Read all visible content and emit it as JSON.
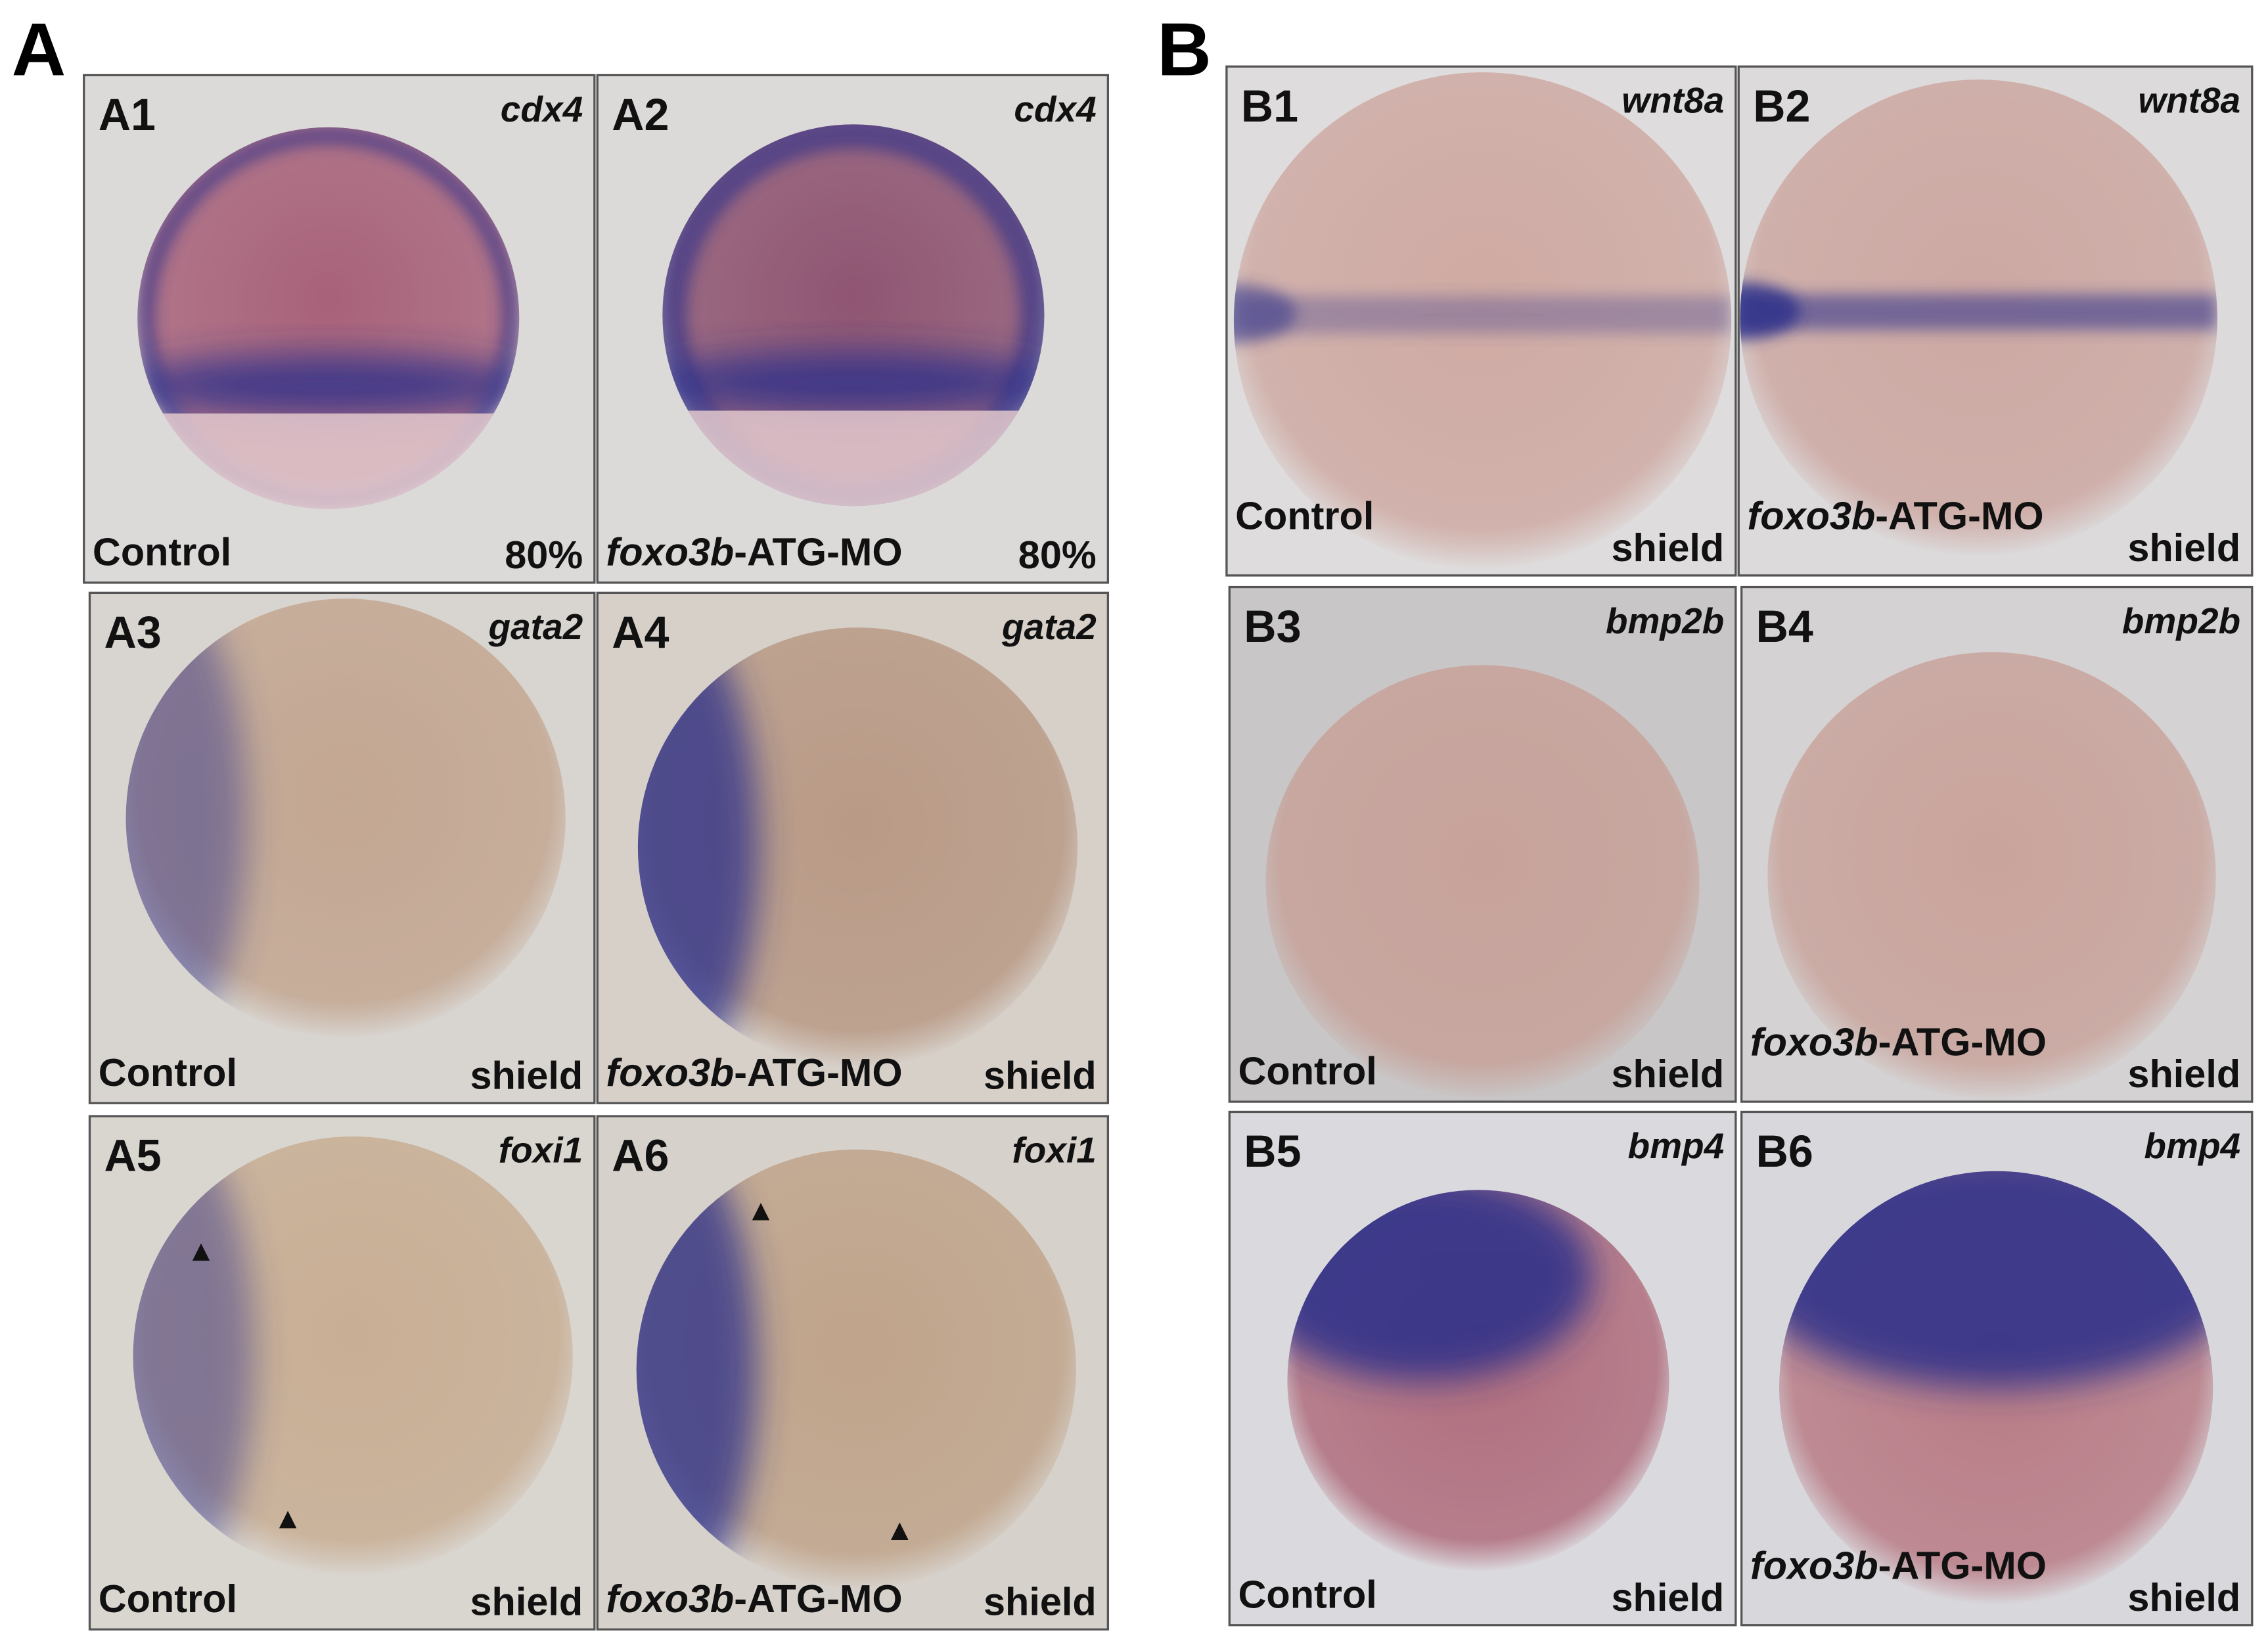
{
  "figure": {
    "panels": [
      {
        "label": "A",
        "subpanels": [
          {
            "id": "A1",
            "gene": "cdx4",
            "condition": {
              "text": "Control"
            },
            "stage": "80%"
          },
          {
            "id": "A2",
            "gene": "cdx4",
            "condition": {
              "italic": "foxo3b",
              "text": "-ATG-MO"
            },
            "stage": "80%"
          },
          {
            "id": "A3",
            "gene": "gata2",
            "condition": {
              "text": "Control"
            },
            "stage": "shield"
          },
          {
            "id": "A4",
            "gene": "gata2",
            "condition": {
              "italic": "foxo3b",
              "text": "-ATG-MO"
            },
            "stage": "shield"
          },
          {
            "id": "A5",
            "gene": "foxi1",
            "condition": {
              "text": "Control"
            },
            "stage": "shield"
          },
          {
            "id": "A6",
            "gene": "foxi1",
            "condition": {
              "italic": "foxo3b",
              "text": "-ATG-MO"
            },
            "stage": "shield"
          }
        ]
      },
      {
        "label": "B",
        "subpanels": [
          {
            "id": "B1",
            "gene": "wnt8a",
            "condition": {
              "text": "Control"
            },
            "stage": "shield"
          },
          {
            "id": "B2",
            "gene": "wnt8a",
            "condition": {
              "italic": "foxo3b",
              "text": "-ATG-MO"
            },
            "stage": "shield"
          },
          {
            "id": "B3",
            "gene": "bmp2b",
            "condition": {
              "text": "Control"
            },
            "stage": "shield"
          },
          {
            "id": "B4",
            "gene": "bmp2b",
            "condition": {
              "italic": "foxo3b",
              "text": "-ATG-MO"
            },
            "stage": "shield"
          },
          {
            "id": "B5",
            "gene": "bmp4",
            "condition": {
              "text": "Control"
            },
            "stage": "shield"
          },
          {
            "id": "B6",
            "gene": "bmp4",
            "condition": {
              "italic": "foxo3b",
              "text": "-ATG-MO"
            },
            "stage": "shield"
          }
        ]
      }
    ]
  }
}
